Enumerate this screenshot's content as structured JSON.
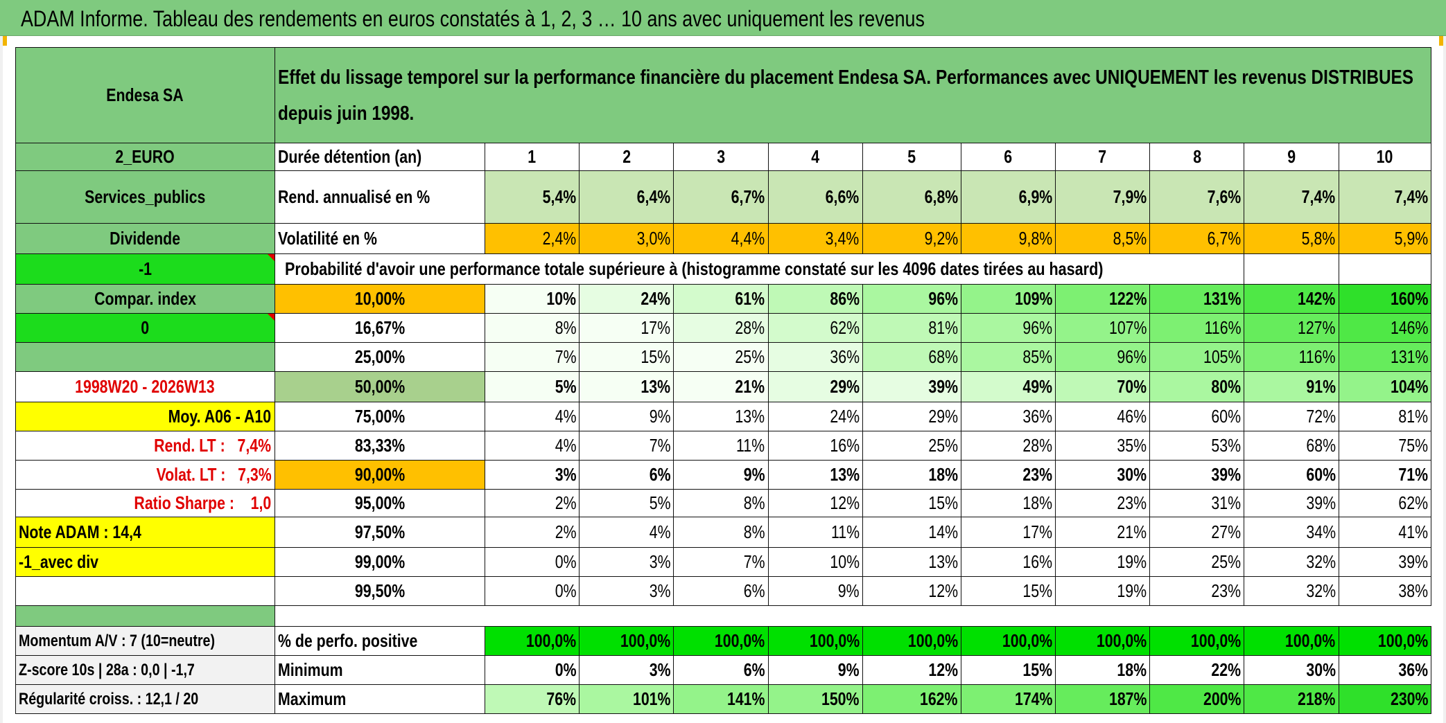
{
  "title": "ADAM Informe. Tableau des rendements en euros constatés à 1, 2, 3 … 10 ans avec uniquement les revenus",
  "side": {
    "name": "Endesa SA",
    "currency": "2_EURO",
    "sector": "Services_publics",
    "type": "Dividende",
    "flag": "-1",
    "compar": "Compar. index",
    "compar_value": "0",
    "period": "1998W20 - 2026W13",
    "moy": "Moy. A06 - A10",
    "rend_lt": "Rend. LT :   7,4%",
    "volat_lt": "Volat. LT :   7,3%",
    "sharpe": "Ratio Sharpe :    1,0",
    "note": "Note ADAM : 14,4",
    "avec_div": "-1_avec div",
    "momentum": "Momentum A/V : 7 (10=neutre)",
    "zscore": "Z-score 10s | 28a : 0,0 | -1,7",
    "regularite": "Régularité croiss. : 12,1 / 20"
  },
  "header_text": "Effet du lissage temporel sur la performance financière du placement Endesa SA. Performances avec UNIQUEMENT les revenus DISTRIBUES depuis juin 1998.",
  "labels": {
    "duree": "Durée détention (an)",
    "rend": "Rend. annualisé en %",
    "vol": "Volatilité en %",
    "proba": "Probabilité d'avoir une performance totale supérieure à (histogramme constaté sur les 4096 dates tirées au hasard)",
    "pos": "% de perfo. positive",
    "min": "Minimum",
    "max": "Maximum"
  },
  "years": [
    "1",
    "2",
    "3",
    "4",
    "5",
    "6",
    "7",
    "8",
    "9",
    "10"
  ],
  "rend": [
    "5,4%",
    "6,4%",
    "6,7%",
    "6,6%",
    "6,8%",
    "6,9%",
    "7,9%",
    "7,6%",
    "7,4%",
    "7,4%"
  ],
  "vol": [
    "2,4%",
    "3,0%",
    "4,4%",
    "3,4%",
    "9,2%",
    "9,8%",
    "8,5%",
    "6,7%",
    "5,8%",
    "5,9%"
  ],
  "quantiles": [
    {
      "label": "10,00%",
      "values": [
        "10%",
        "24%",
        "61%",
        "86%",
        "96%",
        "109%",
        "122%",
        "131%",
        "142%",
        "160%"
      ]
    },
    {
      "label": "16,67%",
      "values": [
        "8%",
        "17%",
        "28%",
        "62%",
        "81%",
        "96%",
        "107%",
        "116%",
        "127%",
        "146%"
      ]
    },
    {
      "label": "25,00%",
      "values": [
        "7%",
        "15%",
        "25%",
        "36%",
        "68%",
        "85%",
        "96%",
        "105%",
        "116%",
        "131%"
      ]
    },
    {
      "label": "50,00%",
      "values": [
        "5%",
        "13%",
        "21%",
        "29%",
        "39%",
        "49%",
        "70%",
        "80%",
        "91%",
        "104%"
      ]
    },
    {
      "label": "75,00%",
      "values": [
        "4%",
        "9%",
        "13%",
        "24%",
        "29%",
        "36%",
        "46%",
        "60%",
        "72%",
        "81%"
      ]
    },
    {
      "label": "83,33%",
      "values": [
        "4%",
        "7%",
        "11%",
        "16%",
        "25%",
        "28%",
        "35%",
        "53%",
        "68%",
        "75%"
      ]
    },
    {
      "label": "90,00%",
      "values": [
        "3%",
        "6%",
        "9%",
        "13%",
        "18%",
        "23%",
        "30%",
        "39%",
        "60%",
        "71%"
      ]
    },
    {
      "label": "95,00%",
      "values": [
        "2%",
        "5%",
        "8%",
        "12%",
        "15%",
        "18%",
        "23%",
        "31%",
        "39%",
        "62%"
      ]
    },
    {
      "label": "97,50%",
      "values": [
        "2%",
        "4%",
        "8%",
        "11%",
        "14%",
        "17%",
        "21%",
        "27%",
        "34%",
        "41%"
      ]
    },
    {
      "label": "99,00%",
      "values": [
        "0%",
        "3%",
        "7%",
        "10%",
        "13%",
        "16%",
        "19%",
        "25%",
        "32%",
        "39%"
      ]
    },
    {
      "label": "99,50%",
      "values": [
        "0%",
        "3%",
        "6%",
        "9%",
        "12%",
        "15%",
        "19%",
        "23%",
        "32%",
        "38%"
      ]
    }
  ],
  "positive": [
    "100,0%",
    "100,0%",
    "100,0%",
    "100,0%",
    "100,0%",
    "100,0%",
    "100,0%",
    "100,0%",
    "100,0%",
    "100,0%"
  ],
  "minimum": [
    "0%",
    "3%",
    "6%",
    "9%",
    "12%",
    "15%",
    "18%",
    "22%",
    "30%",
    "36%"
  ],
  "maximum": [
    "76%",
    "101%",
    "141%",
    "150%",
    "162%",
    "174%",
    "187%",
    "200%",
    "218%",
    "230%"
  ],
  "colors": {
    "title_bg": "#7fca7f",
    "orange": "#ffc000",
    "yellow": "#ffff00",
    "bright_green": "#1cdc1c",
    "label_red": "#e00000"
  }
}
